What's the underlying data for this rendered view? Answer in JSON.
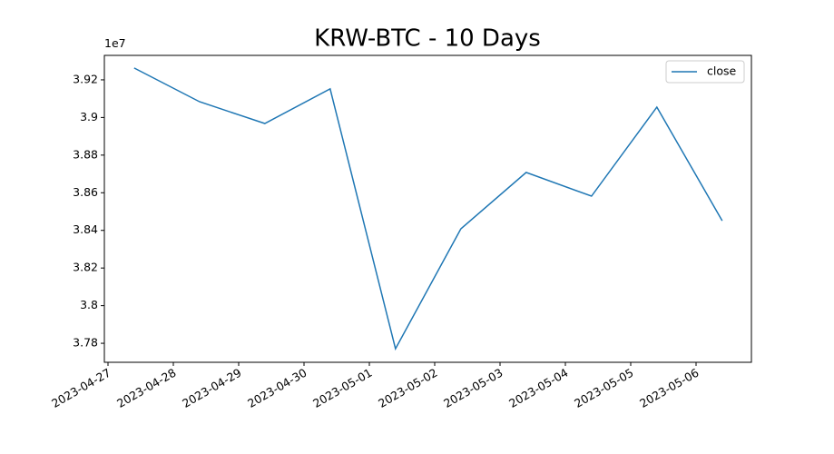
{
  "chart_data": {
    "type": "line",
    "title": "KRW-BTC - 10 Days",
    "y_offset_label": "1e7",
    "x": [
      "2023-04-27 09:36",
      "2023-04-28 09:36",
      "2023-04-29 09:36",
      "2023-04-30 09:36",
      "2023-05-01 09:36",
      "2023-05-02 09:36",
      "2023-05-03 09:36",
      "2023-05-04 09:36",
      "2023-05-05 09:36",
      "2023-05-06 09:36"
    ],
    "series": [
      {
        "name": "close",
        "color": "#1f77b4",
        "values": [
          3.9263,
          3.9084,
          3.8968,
          3.9152,
          3.7771,
          3.8408,
          3.8708,
          3.8582,
          3.9055,
          3.8451
        ]
      }
    ],
    "xlim": [
      "2023-04-26 22:40",
      "2023-05-06 20:20"
    ],
    "xticks": [
      "2023-04-27",
      "2023-04-28",
      "2023-04-29",
      "2023-04-30",
      "2023-05-01",
      "2023-05-02",
      "2023-05-03",
      "2023-05-04",
      "2023-05-05",
      "2023-05-06"
    ],
    "ylim": [
      3.7699,
      3.933
    ],
    "yticks": [
      3.78,
      3.8,
      3.82,
      3.84,
      3.86,
      3.88,
      3.9,
      3.92
    ],
    "legend": "upper right",
    "grid": false
  }
}
